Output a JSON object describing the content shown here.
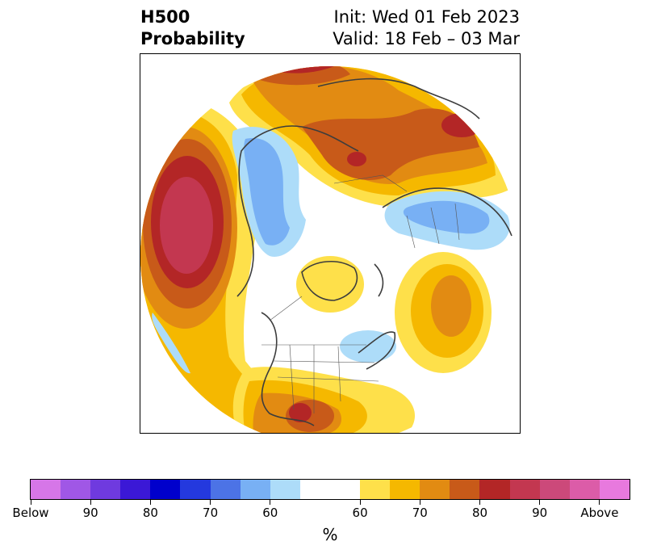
{
  "header": {
    "title_line1": "H500",
    "title_line2": "Probability",
    "init_text": "Init: Wed 01 Feb 2023",
    "valid_text": "Valid: 18 Feb – 03 Mar"
  },
  "colorbar": {
    "unit_label": "%",
    "tick_labels": [
      "Below",
      "90",
      "80",
      "70",
      "60",
      "60",
      "70",
      "80",
      "90",
      "Above"
    ],
    "colors": [
      "#d676e8",
      "#a057e6",
      "#6f3adf",
      "#3b18d6",
      "#0000cc",
      "#2439de",
      "#4c73e6",
      "#78b0f4",
      "#addcf9",
      "#ffffff",
      "#fee04a",
      "#f5b800",
      "#e28b12",
      "#c85a19",
      "#b32626",
      "#c33750",
      "#cc497a",
      "#dc5ca8",
      "#e879de"
    ]
  },
  "map": {
    "legend_meaning": "below-normal shown in blues/purples, above-normal in yellows/oranges/reds"
  }
}
